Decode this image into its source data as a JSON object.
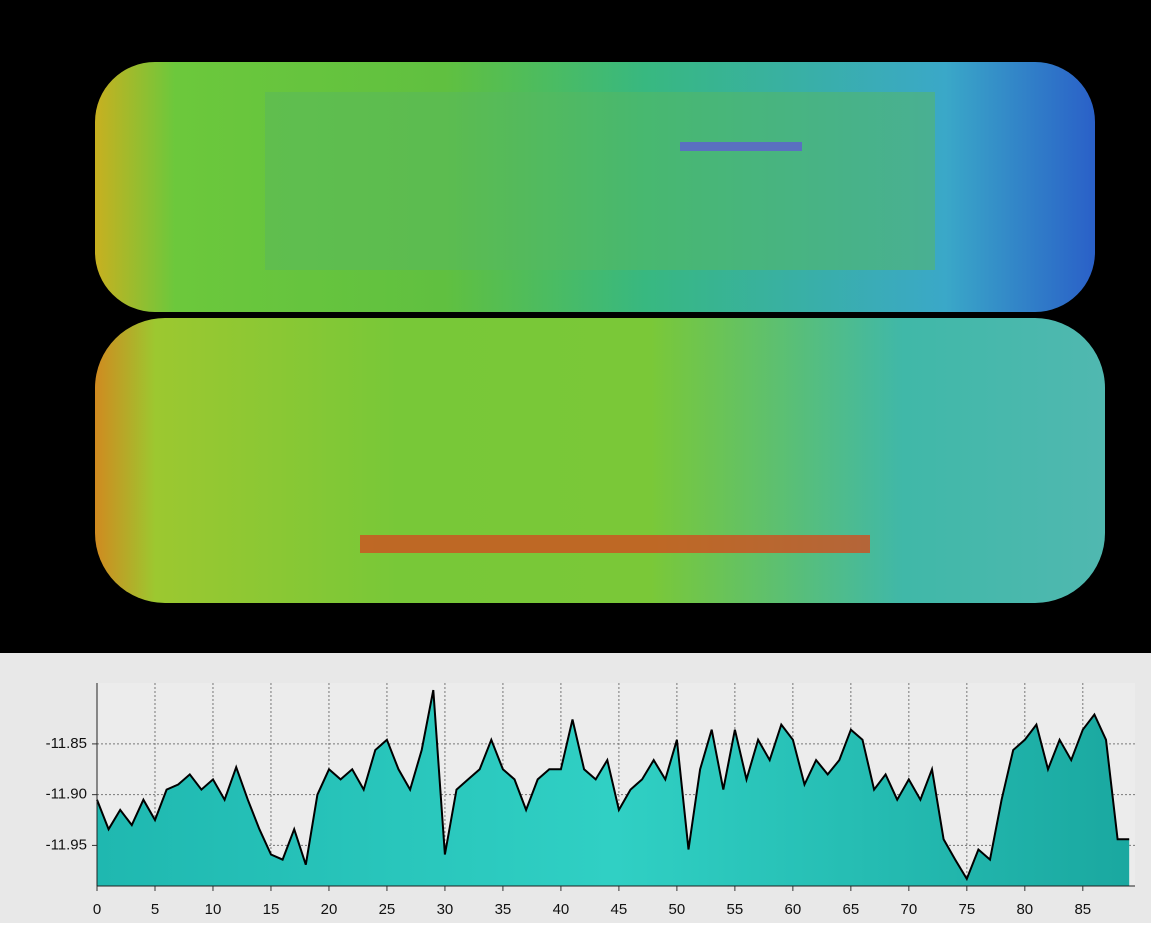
{
  "chart_data": {
    "type": "area",
    "x": [
      0,
      1,
      2,
      3,
      4,
      5,
      6,
      7,
      8,
      9,
      10,
      11,
      12,
      13,
      14,
      15,
      16,
      17,
      18,
      19,
      20,
      21,
      22,
      23,
      24,
      25,
      26,
      27,
      28,
      29,
      30,
      31,
      32,
      33,
      34,
      35,
      36,
      37,
      38,
      39,
      40,
      41,
      42,
      43,
      44,
      45,
      46,
      47,
      48,
      49,
      50,
      51,
      52,
      53,
      54,
      55,
      56,
      57,
      58,
      59,
      60,
      61,
      62,
      63,
      64,
      65,
      66,
      67,
      68,
      69,
      70,
      71,
      72,
      73,
      74,
      75,
      76,
      77,
      78,
      79,
      80,
      81,
      82,
      83,
      84,
      85,
      86,
      87,
      88,
      89
    ],
    "values": [
      -11.905,
      -11.934,
      -11.915,
      -11.93,
      -11.905,
      -11.925,
      -11.895,
      -11.89,
      -11.88,
      -11.895,
      -11.885,
      -11.905,
      -11.873,
      -11.905,
      -11.934,
      -11.959,
      -11.964,
      -11.934,
      -11.969,
      -11.9,
      -11.875,
      -11.885,
      -11.875,
      -11.895,
      -11.856,
      -11.846,
      -11.875,
      -11.895,
      -11.856,
      -11.797,
      -11.959,
      -11.895,
      -11.885,
      -11.875,
      -11.846,
      -11.875,
      -11.885,
      -11.915,
      -11.885,
      -11.875,
      -11.875,
      -11.826,
      -11.875,
      -11.885,
      -11.866,
      -11.915,
      -11.895,
      -11.885,
      -11.866,
      -11.885,
      -11.846,
      -11.954,
      -11.875,
      -11.836,
      -11.895,
      -11.836,
      -11.885,
      -11.846,
      -11.866,
      -11.831,
      -11.846,
      -11.89,
      -11.866,
      -11.88,
      -11.866,
      -11.836,
      -11.846,
      -11.895,
      -11.88,
      -11.905,
      -11.885,
      -11.905,
      -11.875,
      -11.944,
      -11.964,
      -11.983,
      -11.954,
      -11.964,
      -11.905,
      -11.856,
      -11.846,
      -11.831,
      -11.875,
      -11.846,
      -11.866,
      -11.836,
      -11.821,
      -11.846,
      -11.944,
      -11.944
    ],
    "color": "#22c4bc",
    "line_color": "#000000",
    "xlim": [
      0,
      89.5
    ],
    "xticks": [
      0,
      5,
      10,
      15,
      20,
      25,
      30,
      35,
      40,
      45,
      50,
      55,
      60,
      65,
      70,
      75,
      80,
      85
    ],
    "ylim": [
      -11.99,
      -11.79
    ],
    "yticks": [
      -11.85,
      {
        "value": -11.9,
        "label": "-11.90"
      },
      -11.95
    ],
    "grid": true
  }
}
